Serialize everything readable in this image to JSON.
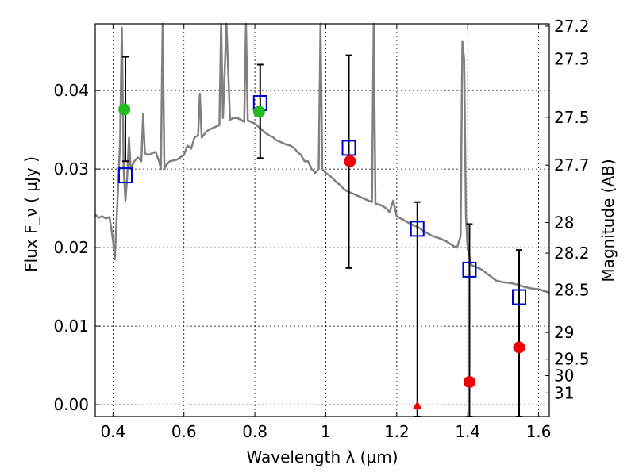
{
  "chart_data": {
    "type": "scatter",
    "xlabel": "Wavelength  λ (μm)",
    "ylabel": "Flux  F_ν  ( μJy )",
    "y2label": "Magnitude (AB)",
    "xlim": [
      0.35,
      1.63
    ],
    "ylim": [
      -0.0015,
      0.0485
    ],
    "x_ticks": [
      0.4,
      0.6,
      0.8,
      1.0,
      1.2,
      1.4,
      1.6
    ],
    "x_tick_labels": [
      "0.4",
      "0.6",
      "0.8",
      "1",
      "1.2",
      "1.4",
      "1.6"
    ],
    "y_ticks": [
      0.0,
      0.01,
      0.02,
      0.03,
      0.04
    ],
    "y_tick_labels": [
      "0.00",
      "0.01",
      "0.02",
      "0.03",
      "0.04"
    ],
    "mag_ticks": [
      {
        "label": "27.2",
        "flux": 0.0482
      },
      {
        "label": "27.3",
        "flux": 0.044
      },
      {
        "label": "27.5",
        "flux": 0.0366
      },
      {
        "label": "27.7",
        "flux": 0.0305
      },
      {
        "label": "28",
        "flux": 0.0232
      },
      {
        "label": "28.2",
        "flux": 0.0193
      },
      {
        "label": "28.5",
        "flux": 0.0146
      },
      {
        "label": "29",
        "flux": 0.0092
      },
      {
        "label": "29.5",
        "flux": 0.0058
      },
      {
        "label": "30",
        "flux": 0.0037
      },
      {
        "label": "31",
        "flux": 0.0015
      }
    ],
    "grid": true,
    "series": [
      {
        "kind": "line",
        "color": "#808080",
        "points": [
          [
            0.35,
            0.0242
          ],
          [
            0.36,
            0.0238
          ],
          [
            0.37,
            0.024
          ],
          [
            0.38,
            0.0237
          ],
          [
            0.39,
            0.0239
          ],
          [
            0.4,
            0.021
          ],
          [
            0.405,
            0.0185
          ],
          [
            0.41,
            0.0233
          ],
          [
            0.42,
            0.0335
          ],
          [
            0.425,
            0.048
          ],
          [
            0.43,
            0.03
          ],
          [
            0.435,
            0.026
          ],
          [
            0.44,
            0.029
          ],
          [
            0.445,
            0.034
          ],
          [
            0.45,
            0.03
          ],
          [
            0.46,
            0.031
          ],
          [
            0.47,
            0.0315
          ],
          [
            0.48,
            0.031
          ],
          [
            0.485,
            0.037
          ],
          [
            0.49,
            0.032
          ],
          [
            0.5,
            0.0318
          ],
          [
            0.51,
            0.032
          ],
          [
            0.52,
            0.0322
          ],
          [
            0.53,
            0.031
          ],
          [
            0.535,
            0.03
          ],
          [
            0.54,
            0.0485
          ],
          [
            0.545,
            0.03
          ],
          [
            0.55,
            0.0305
          ],
          [
            0.56,
            0.031
          ],
          [
            0.58,
            0.0312
          ],
          [
            0.6,
            0.0318
          ],
          [
            0.61,
            0.033
          ],
          [
            0.62,
            0.0326
          ],
          [
            0.63,
            0.034
          ],
          [
            0.64,
            0.0343
          ],
          [
            0.645,
            0.0396
          ],
          [
            0.65,
            0.034
          ],
          [
            0.66,
            0.0346
          ],
          [
            0.67,
            0.035
          ],
          [
            0.68,
            0.0352
          ],
          [
            0.69,
            0.0354
          ],
          [
            0.7,
            0.0356
          ],
          [
            0.705,
            0.0485
          ],
          [
            0.71,
            0.0365
          ],
          [
            0.72,
            0.0485
          ],
          [
            0.73,
            0.0363
          ],
          [
            0.74,
            0.0365
          ],
          [
            0.75,
            0.0365
          ],
          [
            0.76,
            0.0363
          ],
          [
            0.77,
            0.036
          ],
          [
            0.775,
            0.0485
          ],
          [
            0.78,
            0.0362
          ],
          [
            0.79,
            0.036
          ],
          [
            0.8,
            0.0358
          ],
          [
            0.81,
            0.0354
          ],
          [
            0.82,
            0.035
          ],
          [
            0.83,
            0.0346
          ],
          [
            0.84,
            0.0343
          ],
          [
            0.85,
            0.0341
          ],
          [
            0.86,
            0.0337
          ],
          [
            0.87,
            0.0335
          ],
          [
            0.88,
            0.0333
          ],
          [
            0.89,
            0.0331
          ],
          [
            0.9,
            0.033
          ],
          [
            0.91,
            0.0327
          ],
          [
            0.92,
            0.0322
          ],
          [
            0.93,
            0.0318
          ],
          [
            0.94,
            0.031
          ],
          [
            0.95,
            0.031
          ],
          [
            0.96,
            0.03
          ],
          [
            0.97,
            0.0295
          ],
          [
            0.98,
            0.03
          ],
          [
            0.985,
            0.0485
          ],
          [
            0.99,
            0.03
          ],
          [
            1.0,
            0.0295
          ],
          [
            1.01,
            0.0292
          ],
          [
            1.02,
            0.0288
          ],
          [
            1.03,
            0.0283
          ],
          [
            1.04,
            0.028
          ],
          [
            1.05,
            0.0275
          ],
          [
            1.06,
            0.0272
          ],
          [
            1.07,
            0.027
          ],
          [
            1.08,
            0.0268
          ],
          [
            1.09,
            0.0266
          ],
          [
            1.1,
            0.0264
          ],
          [
            1.11,
            0.0262
          ],
          [
            1.12,
            0.026
          ],
          [
            1.13,
            0.0258
          ],
          [
            1.135,
            0.0485
          ],
          [
            1.14,
            0.0256
          ],
          [
            1.15,
            0.0255
          ],
          [
            1.16,
            0.0253
          ],
          [
            1.17,
            0.025
          ],
          [
            1.18,
            0.0245
          ],
          [
            1.19,
            0.026
          ],
          [
            1.2,
            0.024
          ],
          [
            1.22,
            0.0235
          ],
          [
            1.24,
            0.023
          ],
          [
            1.26,
            0.0226
          ],
          [
            1.28,
            0.022
          ],
          [
            1.3,
            0.0215
          ],
          [
            1.32,
            0.0212
          ],
          [
            1.34,
            0.0208
          ],
          [
            1.36,
            0.0202
          ],
          [
            1.37,
            0.02
          ],
          [
            1.38,
            0.0215
          ],
          [
            1.385,
            0.0462
          ],
          [
            1.39,
            0.044
          ],
          [
            1.395,
            0.024
          ],
          [
            1.4,
            0.0198
          ],
          [
            1.41,
            0.0178
          ],
          [
            1.42,
            0.0176
          ],
          [
            1.44,
            0.0172
          ],
          [
            1.46,
            0.0165
          ],
          [
            1.48,
            0.0158
          ],
          [
            1.5,
            0.0156
          ],
          [
            1.52,
            0.0155
          ],
          [
            1.54,
            0.0153
          ],
          [
            1.56,
            0.015
          ],
          [
            1.58,
            0.0148
          ],
          [
            1.6,
            0.0147
          ],
          [
            1.62,
            0.0144
          ],
          [
            1.63,
            0.0143
          ]
        ]
      },
      {
        "kind": "markers",
        "marker": "square",
        "color": "#0000cc",
        "points": [
          [
            0.435,
            0.0292
          ],
          [
            0.815,
            0.0384
          ],
          [
            1.065,
            0.0327
          ],
          [
            1.258,
            0.0224
          ],
          [
            1.405,
            0.0172
          ],
          [
            1.545,
            0.0137
          ]
        ]
      },
      {
        "kind": "markers",
        "marker": "circle",
        "color": "#22bb22",
        "points": [
          [
            0.432,
            0.0376
          ],
          [
            0.812,
            0.0373
          ]
        ]
      },
      {
        "kind": "markers",
        "marker": "circle",
        "color": "#ee0000",
        "points": [
          [
            1.068,
            0.031
          ],
          [
            1.405,
            0.0029
          ],
          [
            1.545,
            0.0073
          ]
        ]
      },
      {
        "kind": "markers",
        "marker": "triangle",
        "color": "#ee0000",
        "points": [
          [
            1.258,
            -0.0001
          ]
        ]
      }
    ],
    "errorbars": [
      {
        "x": 0.435,
        "low": 0.031,
        "high": 0.0443
      },
      {
        "x": 0.815,
        "low": 0.0314,
        "high": 0.0433
      },
      {
        "x": 1.065,
        "low": 0.0174,
        "high": 0.0445
      },
      {
        "x": 1.258,
        "low": -0.0015,
        "high": 0.0258
      },
      {
        "x": 1.405,
        "low": -0.0015,
        "high": 0.023
      },
      {
        "x": 1.545,
        "low": -0.0015,
        "high": 0.0197
      }
    ]
  }
}
